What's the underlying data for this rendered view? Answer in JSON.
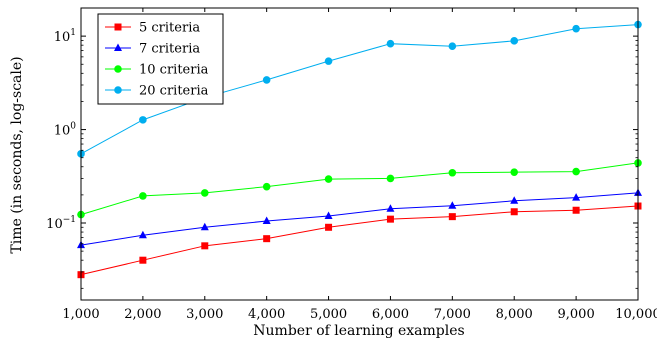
{
  "chart_data": {
    "type": "line",
    "title": "",
    "xlabel": "Number of learning examples",
    "ylabel": "Time (in seconds, log-scale)",
    "x": [
      1000,
      2000,
      3000,
      4000,
      5000,
      6000,
      7000,
      8000,
      9000,
      10000
    ],
    "x_tick_labels": [
      "1,000",
      "2,000",
      "3,000",
      "4,000",
      "5,000",
      "6,000",
      "7,000",
      "8,000",
      "9,000",
      "10,000"
    ],
    "y_scale": "log",
    "ylim": [
      0.015,
      20
    ],
    "y_ticks": [
      {
        "value": 0.1,
        "base": "10",
        "exp": "−1"
      },
      {
        "value": 1,
        "base": "10",
        "exp": "0"
      },
      {
        "value": 10,
        "base": "10",
        "exp": "1"
      }
    ],
    "grid": false,
    "legend_position": "top-left",
    "series": [
      {
        "name": "5 criteria",
        "color": "#ff0000",
        "marker": "square",
        "values": [
          0.028,
          0.04,
          0.057,
          0.068,
          0.09,
          0.11,
          0.117,
          0.132,
          0.137,
          0.152
        ]
      },
      {
        "name": "7 criteria",
        "color": "#0000ff",
        "marker": "triangle",
        "values": [
          0.058,
          0.074,
          0.09,
          0.105,
          0.119,
          0.142,
          0.153,
          0.173,
          0.187,
          0.21
        ]
      },
      {
        "name": "10 criteria",
        "color": "#00ff00",
        "marker": "circle",
        "values": [
          0.123,
          0.195,
          0.21,
          0.245,
          0.295,
          0.3,
          0.345,
          0.35,
          0.355,
          0.44
        ]
      },
      {
        "name": "20 criteria",
        "color": "#00aeef",
        "marker": "circle",
        "values": [
          0.55,
          1.27,
          2.2,
          3.4,
          5.4,
          8.3,
          7.8,
          8.9,
          12.0,
          13.3
        ]
      }
    ]
  }
}
